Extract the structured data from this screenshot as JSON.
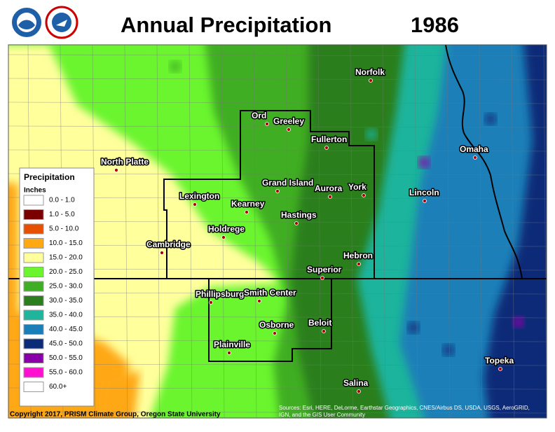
{
  "header": {
    "title": "Annual Precipitation",
    "year": "1986"
  },
  "legend": {
    "title": "Precipitation",
    "units": "Inches",
    "items": [
      {
        "label": "0.0 - 1.0",
        "color": "#ffffff"
      },
      {
        "label": "1.0 - 5.0",
        "color": "#7a0000"
      },
      {
        "label": "5.0 - 10.0",
        "color": "#e65000"
      },
      {
        "label": "10.0 - 15.0",
        "color": "#ffa812"
      },
      {
        "label": "15.0 - 20.0",
        "color": "#ffff9c"
      },
      {
        "label": "20.0 - 25.0",
        "color": "#6af52f"
      },
      {
        "label": "25.0 - 30.0",
        "color": "#3fae24"
      },
      {
        "label": "30.0 - 35.0",
        "color": "#2a7f1c"
      },
      {
        "label": "35.0 - 40.0",
        "color": "#1fb49c"
      },
      {
        "label": "40.0 - 45.0",
        "color": "#1a7fb8"
      },
      {
        "label": "45.0 - 50.0",
        "color": "#0b2b78"
      },
      {
        "label": "50.0 - 55.0",
        "color": "#8a00a8"
      },
      {
        "label": "55.0 - 60.0",
        "color": "#ff10d0"
      },
      {
        "label": "60.0+",
        "color": "#ffffff"
      }
    ]
  },
  "cities": [
    "Norfolk",
    "Ord",
    "Greeley",
    "Fullerton",
    "North Platte",
    "Omaha",
    "Grand Island",
    "Aurora",
    "York",
    "Lincoln",
    "Lexington",
    "Kearney",
    "Hastings",
    "Holdrege",
    "Cambridge",
    "Hebron",
    "Superior",
    "Phillipsburg",
    "Smith Center",
    "Beloit",
    "Osborne",
    "Plainville",
    "Topeka",
    "Salina"
  ],
  "footer": {
    "copyright": "Copyright 2017, PRISM Climate Group, Oregon State University",
    "sources": [
      "Sources: Esri, HERE, DeLorme, Earthstar Geographics, CNES/Airbus DS, USDA, USGS, AeroGRID,",
      "IGN, and the GIS User Community"
    ]
  }
}
